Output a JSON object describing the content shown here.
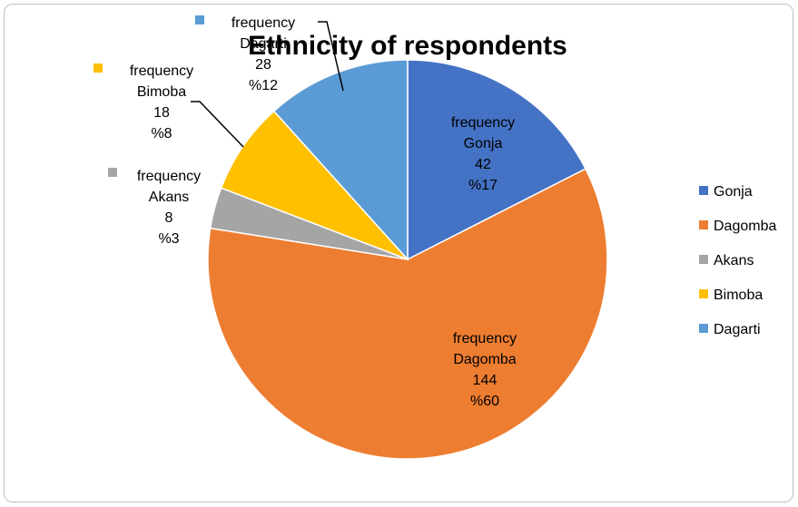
{
  "chart_data": {
    "type": "pie",
    "title": "Ethnicity of respondents",
    "series_name": "frequency",
    "categories": [
      "Gonja",
      "Dagomba",
      "Akans",
      "Bimoba",
      "Dagarti"
    ],
    "values": [
      42,
      144,
      8,
      18,
      28
    ],
    "percent_labels": [
      "%17",
      "%60",
      "%3",
      "%8",
      "%12"
    ],
    "colors": [
      "#4472C4",
      "#ED7D31",
      "#A5A5A5",
      "#FFC000",
      "#5B9BD5"
    ],
    "legend_position": "right",
    "legend": [
      "Gonja",
      "Dagomba",
      "Akans",
      "Bimoba",
      "Dagarti"
    ]
  }
}
